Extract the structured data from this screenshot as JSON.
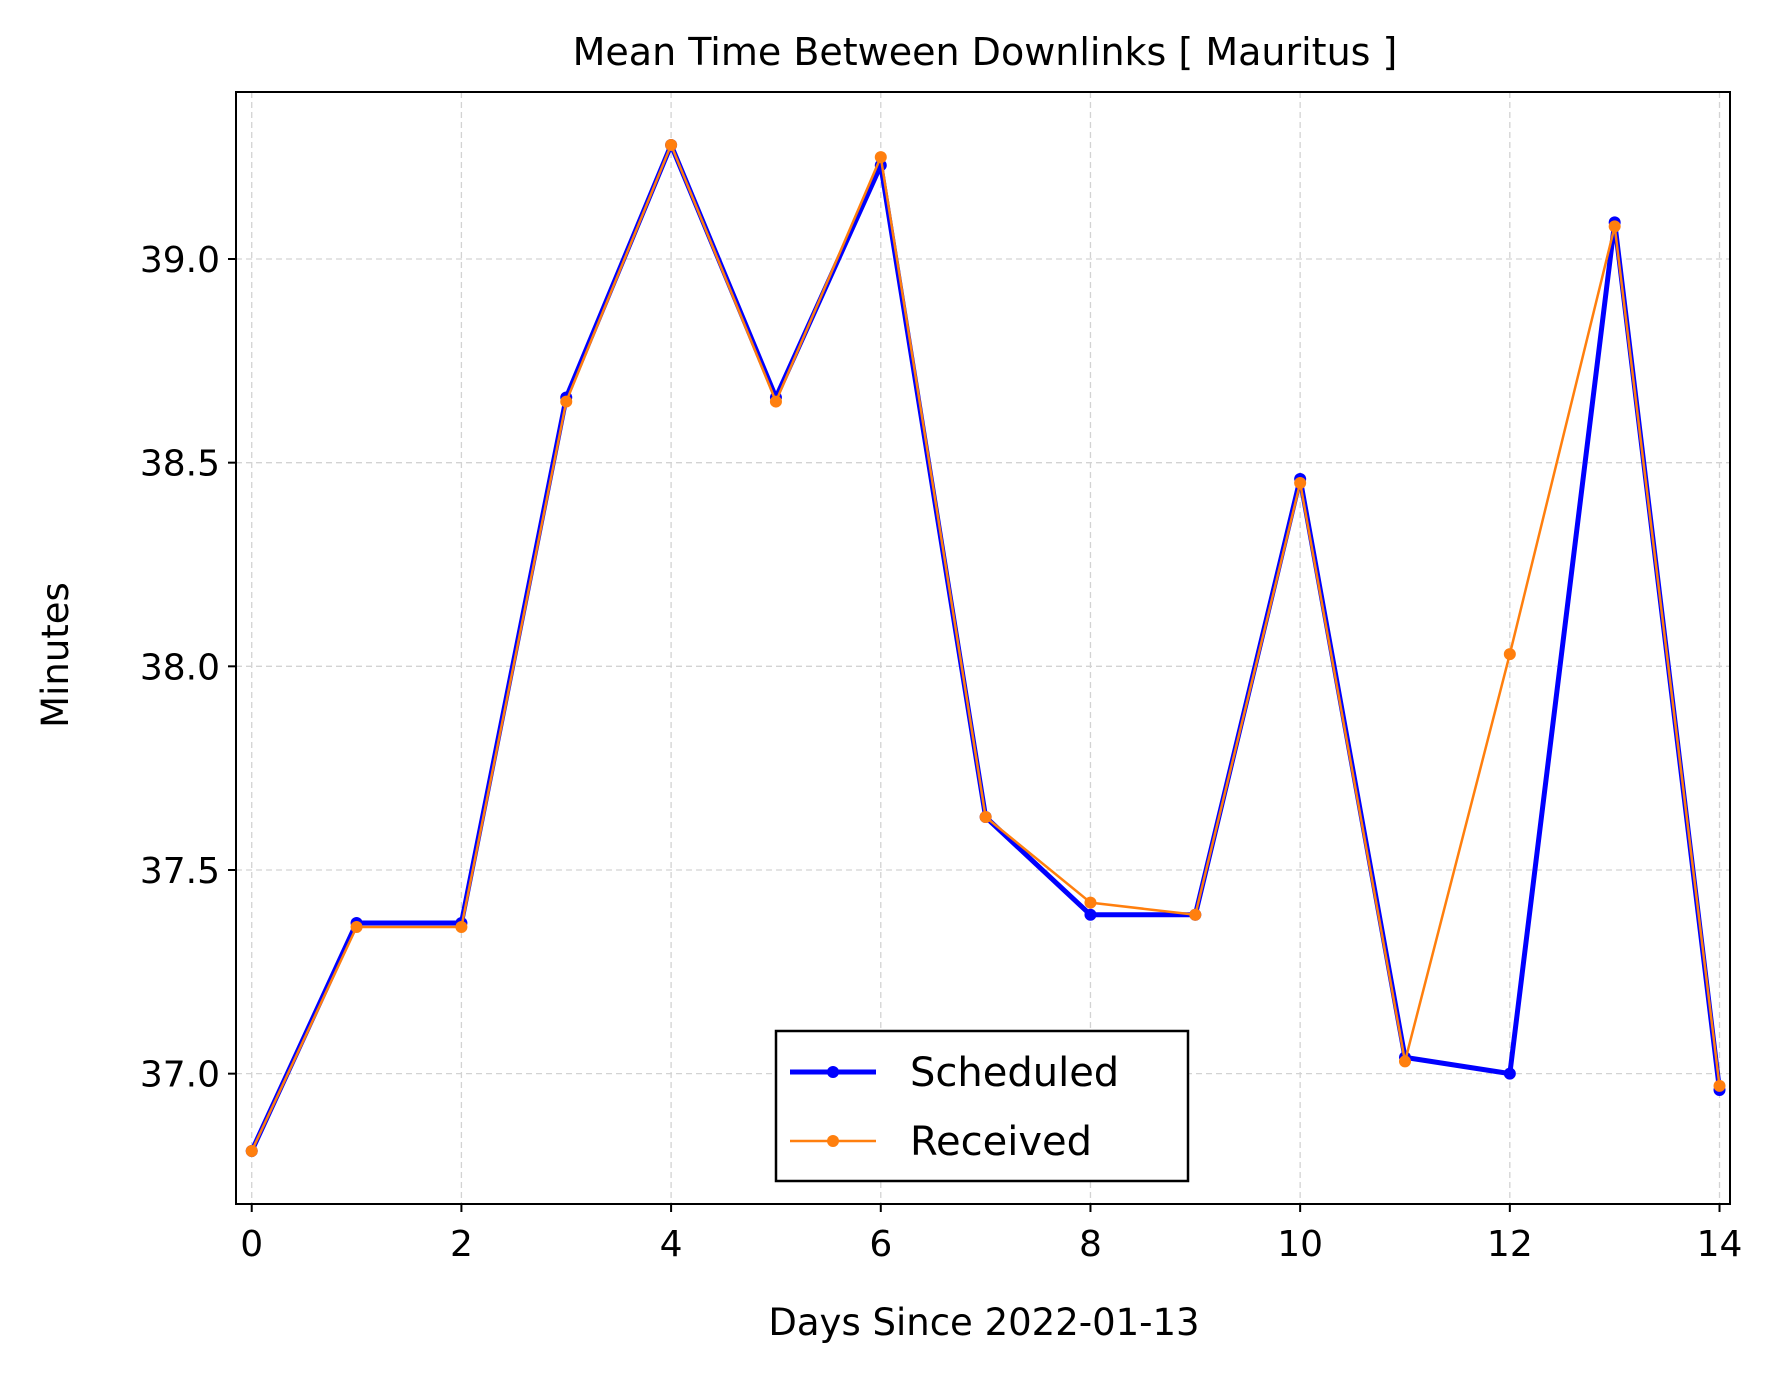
{
  "chart_data": {
    "type": "line",
    "title": "Mean Time Between Downlinks [ Mauritus ]",
    "xlabel": "Days Since 2022-01-13",
    "ylabel": "Minutes",
    "xlim": [
      -0.15,
      14.1
    ],
    "ylim": [
      36.68,
      39.41
    ],
    "xticks": [
      0,
      2,
      4,
      6,
      8,
      10,
      12,
      14
    ],
    "xtick_labels": [
      "0",
      "2",
      "4",
      "6",
      "8",
      "10",
      "12",
      "14"
    ],
    "yticks": [
      37.0,
      37.5,
      38.0,
      38.5,
      39.0
    ],
    "ytick_labels": [
      "37.0",
      "37.5",
      "38.0",
      "38.5",
      "39.0"
    ],
    "grid": true,
    "legend_position": "bottom-center",
    "x": [
      0,
      1,
      2,
      3,
      4,
      5,
      6,
      7,
      8,
      9,
      10,
      11,
      12,
      13,
      14
    ],
    "series": [
      {
        "name": "Scheduled",
        "color": "#0000ff",
        "values": [
          36.81,
          37.37,
          37.37,
          38.66,
          39.28,
          38.66,
          39.23,
          37.63,
          37.39,
          37.39,
          38.46,
          37.04,
          37.0,
          39.09,
          36.96
        ]
      },
      {
        "name": "Received",
        "color": "#ff7f0e",
        "values": [
          36.81,
          37.36,
          37.36,
          38.65,
          39.28,
          38.65,
          39.25,
          37.63,
          37.42,
          37.39,
          38.45,
          37.03,
          38.03,
          39.08,
          36.97
        ]
      }
    ]
  }
}
